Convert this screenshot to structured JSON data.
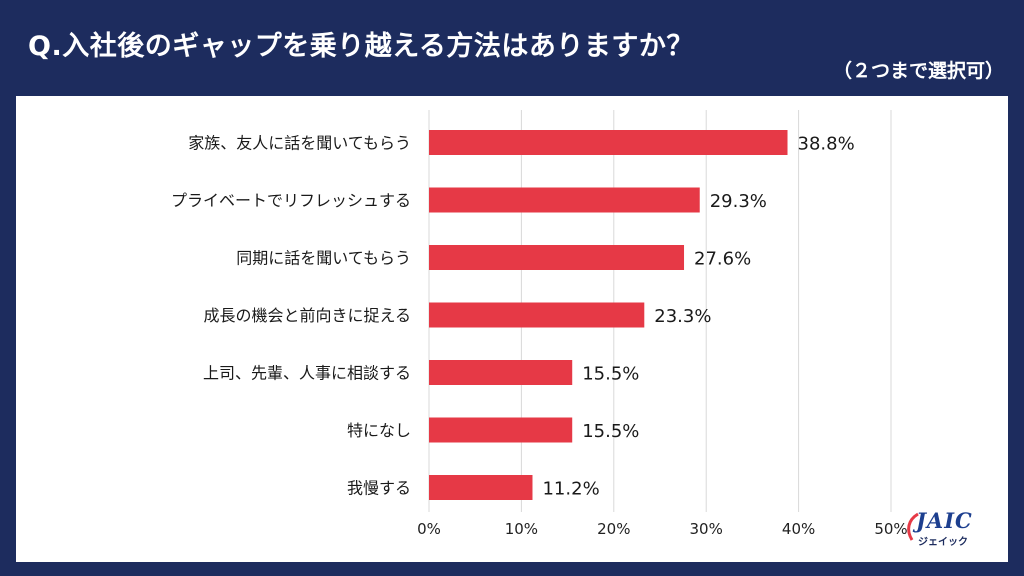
{
  "header": {
    "question": "Q.入社後のギャップを乗り越える方法はありますか？",
    "note": "（２つまで選択可）"
  },
  "brand": {
    "logo_text": "JAIC",
    "logo_sub": "ジェイック"
  },
  "colors": {
    "background": "#1d2c5e",
    "bar": "#e63946",
    "grid": "#d9d9d9"
  },
  "chart_data": {
    "type": "bar",
    "orientation": "horizontal",
    "categories": [
      "家族、友人に話を聞いてもらう",
      "プライベートでリフレッシュする",
      "同期に話を聞いてもらう",
      "成長の機会と前向きに捉える",
      "上司、先輩、人事に相談する",
      "特になし",
      "我慢する"
    ],
    "values": [
      38.8,
      29.3,
      27.6,
      23.3,
      15.5,
      15.5,
      11.2
    ],
    "value_labels": [
      "38.8%",
      "29.3%",
      "27.6%",
      "23.3%",
      "15.5%",
      "15.5%",
      "11.2%"
    ],
    "xlim": [
      0,
      50
    ],
    "xticks": [
      0,
      10,
      20,
      30,
      40,
      50
    ],
    "xtick_labels": [
      "0%",
      "10%",
      "20%",
      "30%",
      "40%",
      "50%"
    ],
    "grid": true,
    "legend": "none"
  }
}
